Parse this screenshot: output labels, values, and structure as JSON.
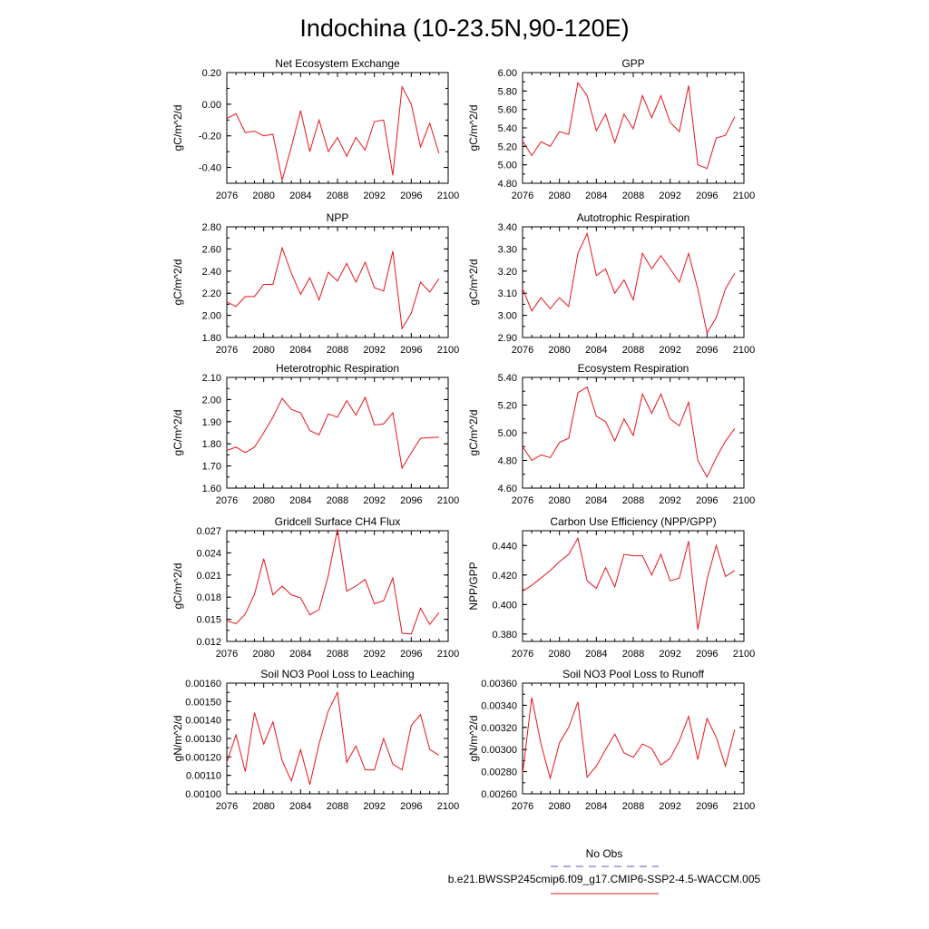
{
  "title": "Indochina (10-23.5N,90-120E)",
  "line_color": "#e8141c",
  "obs_color": "#5a5ac8",
  "legend": {
    "obs_label": "No Obs",
    "model_label": "b.e21.BWSSP245cmip6.f09_g17.CMIP6-SSP2-4.5-WACCM.005"
  },
  "years": [
    2076,
    2077,
    2078,
    2079,
    2080,
    2081,
    2082,
    2083,
    2084,
    2085,
    2086,
    2087,
    2088,
    2089,
    2090,
    2091,
    2092,
    2093,
    2094,
    2095,
    2096,
    2097,
    2098,
    2099
  ],
  "x_ticks": [
    "2076",
    "2080",
    "2084",
    "2088",
    "2092",
    "2096",
    "2100"
  ],
  "chart_data": [
    {
      "type": "line",
      "title": "Net Ecosystem Exchange",
      "ylabel": "gC/m^2/d",
      "xlim": [
        2076,
        2100
      ],
      "ylim": [
        -0.5,
        0.2
      ],
      "yticks": [
        -0.4,
        -0.2,
        0.0,
        0.2
      ],
      "yticklabels": [
        "-0.40",
        "-0.20",
        "0.00",
        "0.20"
      ],
      "values": [
        -0.09,
        -0.06,
        -0.18,
        -0.17,
        -0.2,
        -0.19,
        -0.48,
        -0.27,
        -0.04,
        -0.3,
        -0.1,
        -0.3,
        -0.21,
        -0.33,
        -0.21,
        -0.29,
        -0.11,
        -0.1,
        -0.45,
        0.11,
        0.0,
        -0.27,
        -0.12,
        -0.31
      ]
    },
    {
      "type": "line",
      "title": "GPP",
      "ylabel": "gC/m^2/d",
      "xlim": [
        2076,
        2100
      ],
      "ylim": [
        4.8,
        6.0
      ],
      "yticks": [
        4.8,
        5.0,
        5.2,
        5.4,
        5.6,
        5.8,
        6.0
      ],
      "yticklabels": [
        "4.80",
        "5.00",
        "5.20",
        "5.40",
        "5.60",
        "5.80",
        "6.00"
      ],
      "values": [
        5.26,
        5.1,
        5.25,
        5.2,
        5.36,
        5.33,
        5.89,
        5.75,
        5.37,
        5.55,
        5.24,
        5.55,
        5.39,
        5.75,
        5.51,
        5.75,
        5.46,
        5.36,
        5.86,
        5.0,
        4.96,
        5.29,
        5.32,
        5.52
      ]
    },
    {
      "type": "line",
      "title": "NPP",
      "ylabel": "gC/m^2/d",
      "xlim": [
        2076,
        2100
      ],
      "ylim": [
        1.8,
        2.8
      ],
      "yticks": [
        1.8,
        2.0,
        2.2,
        2.4,
        2.6,
        2.8
      ],
      "yticklabels": [
        "1.80",
        "2.00",
        "2.20",
        "2.40",
        "2.60",
        "2.80"
      ],
      "values": [
        2.12,
        2.08,
        2.17,
        2.17,
        2.28,
        2.28,
        2.61,
        2.38,
        2.19,
        2.34,
        2.14,
        2.39,
        2.31,
        2.47,
        2.3,
        2.48,
        2.25,
        2.22,
        2.58,
        1.88,
        2.02,
        2.3,
        2.21,
        2.33
      ]
    },
    {
      "type": "line",
      "title": "Autotrophic Respiration",
      "ylabel": "gC/m^2/d",
      "xlim": [
        2076,
        2100
      ],
      "ylim": [
        2.9,
        3.4
      ],
      "yticks": [
        2.9,
        3.0,
        3.1,
        3.2,
        3.3,
        3.4
      ],
      "yticklabels": [
        "2.90",
        "3.00",
        "3.10",
        "3.20",
        "3.30",
        "3.40"
      ],
      "values": [
        3.12,
        3.02,
        3.08,
        3.03,
        3.08,
        3.04,
        3.28,
        3.37,
        3.18,
        3.21,
        3.1,
        3.16,
        3.07,
        3.28,
        3.21,
        3.27,
        3.21,
        3.15,
        3.28,
        3.12,
        2.92,
        2.99,
        3.12,
        3.19
      ]
    },
    {
      "type": "line",
      "title": "Heterotrophic Respiration",
      "ylabel": "gC/m^2/d",
      "xlim": [
        2076,
        2100
      ],
      "ylim": [
        1.6,
        2.1
      ],
      "yticks": [
        1.6,
        1.7,
        1.8,
        1.9,
        2.0,
        2.1
      ],
      "yticklabels": [
        "1.60",
        "1.70",
        "1.80",
        "1.90",
        "2.00",
        "2.10"
      ],
      "values": [
        1.77,
        1.785,
        1.76,
        1.785,
        1.85,
        1.92,
        2.005,
        1.955,
        1.94,
        1.86,
        1.84,
        1.935,
        1.92,
        1.995,
        1.93,
        2.01,
        1.885,
        1.89,
        1.94,
        1.69,
        1.76,
        1.825,
        1.828,
        1.83
      ]
    },
    {
      "type": "line",
      "title": "Ecosystem Respiration",
      "ylabel": "gC/m^2/d",
      "xlim": [
        2076,
        2100
      ],
      "ylim": [
        4.6,
        5.4
      ],
      "yticks": [
        4.6,
        4.8,
        5.0,
        5.2,
        5.4
      ],
      "yticklabels": [
        "4.60",
        "4.80",
        "5.00",
        "5.20",
        "5.40"
      ],
      "values": [
        4.9,
        4.8,
        4.84,
        4.82,
        4.93,
        4.96,
        5.29,
        5.33,
        5.12,
        5.08,
        4.94,
        5.1,
        4.98,
        5.28,
        5.14,
        5.28,
        5.1,
        5.05,
        5.22,
        4.8,
        4.68,
        4.82,
        4.94,
        5.03
      ]
    },
    {
      "type": "line",
      "title": "Gridcell Surface CH4 Flux",
      "ylabel": "gC/m^2/d",
      "xlim": [
        2076,
        2100
      ],
      "ylim": [
        0.012,
        0.027
      ],
      "yticks": [
        0.012,
        0.015,
        0.018,
        0.021,
        0.024,
        0.027
      ],
      "yticklabels": [
        "0.012",
        "0.015",
        "0.018",
        "0.021",
        "0.024",
        "0.027"
      ],
      "values": [
        0.0148,
        0.0144,
        0.0157,
        0.0184,
        0.0232,
        0.0183,
        0.0195,
        0.0183,
        0.0179,
        0.0156,
        0.0163,
        0.0209,
        0.0272,
        0.0188,
        0.0195,
        0.0204,
        0.0171,
        0.0175,
        0.0206,
        0.0131,
        0.013,
        0.0165,
        0.0143,
        0.0159
      ]
    },
    {
      "type": "line",
      "title": "Carbon Use Efficiency (NPP/GPP)",
      "ylabel": "NPP/GPP",
      "xlim": [
        2076,
        2100
      ],
      "ylim": [
        0.375,
        0.45
      ],
      "yticks": [
        0.38,
        0.4,
        0.42,
        0.44
      ],
      "yticklabels": [
        "0.380",
        "0.400",
        "0.420",
        "0.440"
      ],
      "values": [
        0.409,
        0.413,
        0.418,
        0.423,
        0.429,
        0.434,
        0.445,
        0.416,
        0.411,
        0.425,
        0.412,
        0.434,
        0.433,
        0.433,
        0.42,
        0.434,
        0.416,
        0.418,
        0.443,
        0.383,
        0.417,
        0.44,
        0.419,
        0.423
      ]
    },
    {
      "type": "line",
      "title": "Soil NO3 Pool Loss to Leaching",
      "ylabel": "gN/m^2/d",
      "xlim": [
        2076,
        2100
      ],
      "ylim": [
        0.001,
        0.0016
      ],
      "yticks": [
        0.001,
        0.0011,
        0.0012,
        0.0013,
        0.0014,
        0.0015,
        0.0016
      ],
      "yticklabels": [
        "0.00100",
        "0.00110",
        "0.00120",
        "0.00130",
        "0.00140",
        "0.00150",
        "0.00160"
      ],
      "values": [
        0.00117,
        0.00132,
        0.00112,
        0.00144,
        0.00127,
        0.00139,
        0.00118,
        0.00107,
        0.00124,
        0.00105,
        0.00127,
        0.00145,
        0.00155,
        0.00117,
        0.00126,
        0.00113,
        0.00113,
        0.0013,
        0.00116,
        0.00113,
        0.00137,
        0.00143,
        0.00124,
        0.00121
      ]
    },
    {
      "type": "line",
      "title": "Soil NO3 Pool Loss to Runoff",
      "ylabel": "gN/m^2/d",
      "xlim": [
        2076,
        2100
      ],
      "ylim": [
        0.0026,
        0.0036
      ],
      "yticks": [
        0.0026,
        0.0028,
        0.003,
        0.0032,
        0.0034,
        0.0036
      ],
      "yticklabels": [
        "0.00260",
        "0.00280",
        "0.00300",
        "0.00320",
        "0.00340",
        "0.00360"
      ],
      "values": [
        0.00278,
        0.00347,
        0.00305,
        0.00274,
        0.00306,
        0.0032,
        0.00343,
        0.00275,
        0.00285,
        0.003,
        0.00314,
        0.00297,
        0.00293,
        0.00305,
        0.00301,
        0.00286,
        0.00292,
        0.00308,
        0.0033,
        0.00291,
        0.00328,
        0.00311,
        0.00285,
        0.00318
      ]
    }
  ]
}
